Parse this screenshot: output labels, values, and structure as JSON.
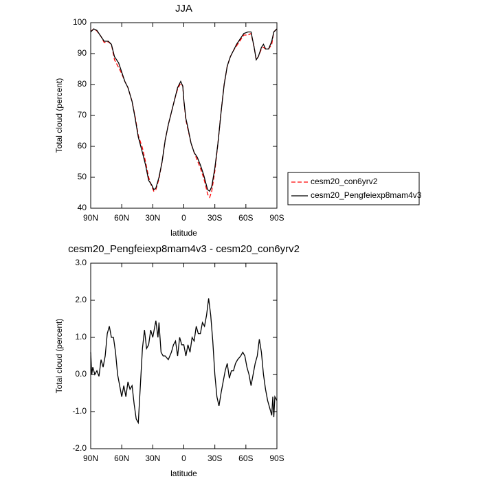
{
  "chart_data": [
    {
      "type": "line",
      "title": "JJA",
      "xlabel": "latitude",
      "ylabel": "Total cloud (percent)",
      "x": [
        90,
        87,
        84,
        80,
        77,
        73,
        70,
        67,
        63,
        60,
        57,
        54,
        50,
        47,
        44,
        40,
        37,
        34,
        31,
        29,
        27,
        24,
        21,
        18,
        15,
        12,
        9,
        6,
        3,
        1,
        0,
        -2,
        -4,
        -7,
        -10,
        -13,
        -16,
        -19,
        -21,
        -23,
        -25,
        -27,
        -30,
        -33,
        -36,
        -39,
        -42,
        -45,
        -48,
        -51,
        -55,
        -58,
        -62,
        -65,
        -68,
        -70,
        -72,
        -75,
        -77,
        -79,
        -82,
        -85,
        -87,
        -90
      ],
      "series": [
        {
          "name": "cesm20_con6yrv2",
          "color": "#ff0000",
          "dash": "dashed",
          "values": [
            97.2,
            98,
            97.3,
            95.5,
            93.6,
            93.8,
            93,
            88,
            85.5,
            83.5,
            81,
            79,
            74.5,
            69.5,
            63.5,
            59.5,
            55,
            50,
            47,
            45.5,
            46,
            49.5,
            55,
            62,
            67,
            71,
            75,
            78.5,
            80.5,
            79.5,
            75,
            68.5,
            65.5,
            61,
            58,
            55.5,
            53,
            50,
            47.5,
            44.5,
            43.5,
            45.5,
            52,
            61,
            71,
            80,
            86,
            89,
            91,
            92.5,
            94.5,
            96,
            96,
            96.5,
            92,
            88,
            89,
            91.5,
            92,
            91.5,
            91.5,
            93,
            97,
            98
          ]
        },
        {
          "name": "cesm20_Pengfeiexp8mam4v3",
          "color": "#000000",
          "dash": "solid",
          "values": [
            97,
            98,
            97.5,
            95.5,
            94,
            94,
            93,
            89,
            87,
            84,
            81,
            79,
            74.5,
            69,
            63,
            58,
            54,
            49,
            47.5,
            46,
            46.5,
            50,
            55,
            62,
            67,
            71,
            75,
            79,
            81,
            79.5,
            75,
            69,
            66,
            61,
            58,
            56.5,
            54,
            51,
            48.5,
            46,
            45.5,
            47,
            53,
            61,
            71,
            80,
            86,
            89,
            91,
            93,
            95,
            96.5,
            97,
            97,
            92,
            88,
            89,
            92,
            93,
            91.5,
            91.5,
            94,
            97,
            98
          ]
        }
      ],
      "xlim": [
        90,
        -90
      ],
      "xticks": [
        {
          "value": 90,
          "label": "90N"
        },
        {
          "value": 60,
          "label": "60N"
        },
        {
          "value": 30,
          "label": "30N"
        },
        0,
        {
          "value": -30,
          "label": "30S"
        },
        {
          "value": -60,
          "label": "60S"
        },
        {
          "value": -90,
          "label": "90S"
        }
      ],
      "ylim": [
        40,
        100
      ],
      "yticks": [
        40,
        50,
        60,
        70,
        80,
        90,
        100
      ],
      "legend": "outside-right"
    },
    {
      "type": "line",
      "title": "cesm20_Pengfeiexp8mam4v3 - cesm20_con6yrv2",
      "xlabel": "latitude",
      "ylabel": "Total cloud (percent)",
      "x": [
        90,
        89,
        88,
        86,
        84,
        82,
        80,
        78,
        76,
        74,
        72,
        70,
        68,
        66,
        64,
        62,
        60,
        58,
        56,
        54,
        52,
        50,
        48,
        46,
        44,
        42,
        40,
        38,
        36,
        34,
        32,
        30,
        28,
        27,
        25,
        24,
        22,
        20,
        18,
        15,
        12,
        10,
        8,
        6,
        4,
        2,
        0,
        -2,
        -4,
        -6,
        -8,
        -10,
        -12,
        -14,
        -16,
        -18,
        -20,
        -22,
        -24,
        -26,
        -28,
        -30,
        -32,
        -34,
        -36,
        -38,
        -40,
        -42,
        -44,
        -46,
        -48,
        -50,
        -52,
        -55,
        -57,
        -59,
        -61,
        -63,
        -65,
        -67,
        -69,
        -71,
        -73,
        -75,
        -77,
        -79,
        -81,
        -83,
        -85,
        -86,
        -87,
        -88,
        -90
      ],
      "series": [
        {
          "color": "#000000",
          "dash": "solid",
          "values": [
            0.6,
            0,
            0.2,
            0,
            0.1,
            -0.05,
            0.4,
            0.2,
            0.5,
            1.1,
            1.3,
            1.0,
            1.0,
            0.6,
            0,
            -0.3,
            -0.6,
            -0.3,
            -0.6,
            -0.2,
            -0.4,
            -0.3,
            -0.8,
            -1.2,
            -1.3,
            -0.3,
            0.7,
            1.2,
            0.7,
            0.8,
            1.2,
            1.0,
            1.3,
            1.45,
            1.0,
            1.4,
            0.6,
            0.5,
            0.5,
            0.4,
            0.6,
            0.8,
            0.9,
            0.5,
            1.0,
            0.8,
            0.8,
            0.5,
            0.8,
            0.6,
            1.0,
            0.9,
            1.3,
            1.1,
            1.1,
            1.4,
            1.3,
            1.6,
            2.05,
            1.6,
            0.9,
            0,
            -0.6,
            -0.85,
            -0.5,
            -0.2,
            0.1,
            0.3,
            -0.1,
            0.1,
            0.1,
            0.3,
            0.4,
            0.5,
            0.6,
            0.5,
            0.2,
            0,
            -0.3,
            0,
            0.3,
            0.5,
            0.95,
            0.6,
            0,
            -0.4,
            -0.7,
            -0.9,
            -1.1,
            -0.6,
            -1.15,
            -0.6,
            -0.7
          ]
        }
      ],
      "xlim": [
        90,
        -90
      ],
      "xticks": [
        {
          "value": 90,
          "label": "90N"
        },
        {
          "value": 60,
          "label": "60N"
        },
        {
          "value": 30,
          "label": "30N"
        },
        0,
        {
          "value": -30,
          "label": "30S"
        },
        {
          "value": -60,
          "label": "60S"
        },
        {
          "value": -90,
          "label": "90S"
        }
      ],
      "ylim": [
        -2,
        3
      ],
      "yticks": [
        {
          "value": -2,
          "label": "-2.0"
        },
        {
          "value": -1,
          "label": "-1.0"
        },
        {
          "value": 0,
          "label": "0.0"
        },
        {
          "value": 1,
          "label": "1.0"
        },
        {
          "value": 2,
          "label": "2.0"
        },
        {
          "value": 3,
          "label": "3.0"
        }
      ]
    }
  ]
}
